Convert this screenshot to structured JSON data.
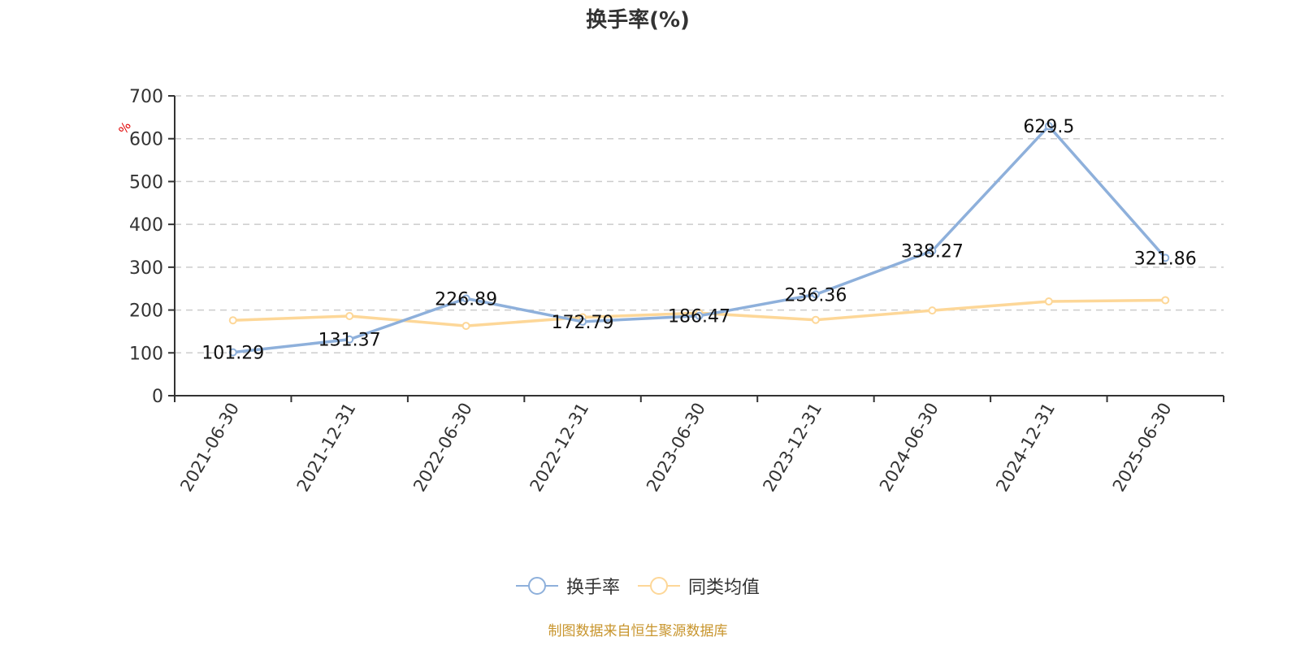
{
  "title": "换手率(%)",
  "source_note": "制图数据来自恒生聚源数据库",
  "legend": [
    {
      "label": "换手率",
      "color": "#8eb0db"
    },
    {
      "label": "同类均值",
      "color": "#fdd798"
    }
  ],
  "chart_data": {
    "type": "line",
    "title": "换手率(%)",
    "xlabel": "",
    "ylabel": "%",
    "ylim": [
      0,
      700
    ],
    "yticks": [
      0,
      100,
      200,
      300,
      400,
      500,
      600,
      700
    ],
    "grid": true,
    "legend_position": "bottom",
    "categories": [
      "2021-06-30",
      "2021-12-31",
      "2022-06-30",
      "2022-12-31",
      "2023-06-30",
      "2023-12-31",
      "2024-06-30",
      "2024-12-31",
      "2025-06-30"
    ],
    "series": [
      {
        "name": "换手率",
        "color": "#8eb0db",
        "values": [
          101.29,
          131.37,
          226.89,
          172.79,
          186.47,
          236.36,
          338.27,
          629.5,
          321.86
        ],
        "labels_shown": true
      },
      {
        "name": "同类均值",
        "color": "#fdd798",
        "values": [
          176,
          186,
          163,
          183,
          193,
          177,
          199,
          220,
          223
        ],
        "labels_shown": false
      }
    ]
  }
}
